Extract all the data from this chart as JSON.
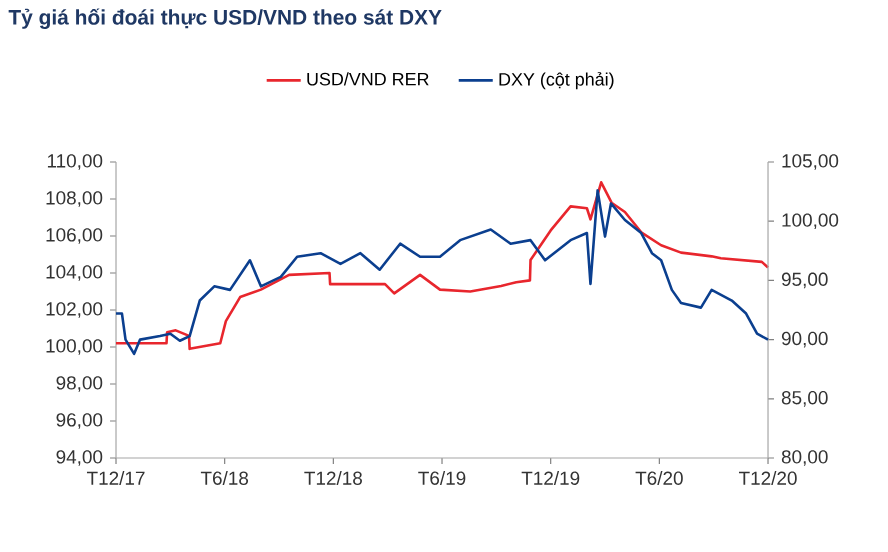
{
  "chart_data": {
    "type": "line",
    "title": "Tỷ giá hối đoái thực USD/VND theo sát DXY",
    "xlim": [
      "2017-12",
      "2020-12"
    ],
    "xticks": [
      {
        "value": "2017-12",
        "label": "T12/17"
      },
      {
        "value": "2018-06",
        "label": "T6/18"
      },
      {
        "value": "2018-12",
        "label": "T12/18"
      },
      {
        "value": "2019-06",
        "label": "T6/19"
      },
      {
        "value": "2019-12",
        "label": "T12/19"
      },
      {
        "value": "2020-06",
        "label": "T6/20"
      },
      {
        "value": "2020-12",
        "label": "T12/20"
      }
    ],
    "ylim": [
      94,
      110
    ],
    "yticks": [
      {
        "value": 94,
        "label": "94,00"
      },
      {
        "value": 96,
        "label": "96,00"
      },
      {
        "value": 98,
        "label": "98,00"
      },
      {
        "value": 100,
        "label": "100,00"
      },
      {
        "value": 102,
        "label": "102,00"
      },
      {
        "value": 104,
        "label": "104,00"
      },
      {
        "value": 106,
        "label": "106,00"
      },
      {
        "value": 108,
        "label": "108,00"
      },
      {
        "value": 110,
        "label": "110,00"
      }
    ],
    "y2lim": [
      80,
      105
    ],
    "y2ticks": [
      {
        "value": 80,
        "label": "80,00"
      },
      {
        "value": 85,
        "label": "85,00"
      },
      {
        "value": 90,
        "label": "90,00"
      },
      {
        "value": 95,
        "label": "95,00"
      },
      {
        "value": 100,
        "label": "100,00"
      },
      {
        "value": 105,
        "label": "105,00"
      }
    ],
    "grid": false,
    "legend": "top",
    "marker": "none",
    "line_style": "solid",
    "series": [
      {
        "name": "USD/VND RER",
        "color": "#e8262d",
        "x": [
          "2017-12-01",
          "2018-02-25",
          "2018-02-26",
          "2018-03-10",
          "2018-04-02",
          "2018-04-03",
          "2018-05-24",
          "2018-06-03",
          "2018-06-27",
          "2018-08-01",
          "2018-09-18",
          "2018-11-25",
          "2018-11-26",
          "2019-02-27",
          "2019-03-12",
          "2019-04-25",
          "2019-05-28",
          "2019-07-18",
          "2019-09-09",
          "2019-10-04",
          "2019-10-27",
          "2019-10-28",
          "2019-12-01",
          "2020-01-04",
          "2020-02-01",
          "2020-02-07",
          "2020-02-25",
          "2020-03-12",
          "2020-04-04",
          "2020-05-01",
          "2020-06-04",
          "2020-07-07",
          "2020-08-28",
          "2020-09-13",
          "2020-11-21",
          "2020-12-01"
        ],
        "values": [
          100.2,
          100.2,
          100.8,
          100.9,
          100.6,
          99.9,
          100.2,
          101.4,
          102.7,
          103.1,
          103.9,
          104.0,
          103.4,
          103.4,
          102.9,
          103.9,
          103.1,
          103.0,
          103.3,
          103.5,
          103.6,
          104.7,
          106.3,
          107.6,
          107.5,
          106.9,
          108.9,
          107.8,
          107.3,
          106.2,
          105.5,
          105.1,
          104.9,
          104.8,
          104.6,
          104.3
        ]
      },
      {
        "name": "DXY (cột phải)",
        "color": "#0b3f8f",
        "axis": "y2",
        "x": [
          "2017-12-01",
          "2017-12-11",
          "2017-12-17",
          "2018-01-01",
          "2018-01-11",
          "2018-02-14",
          "2018-03-01",
          "2018-03-17",
          "2018-04-03",
          "2018-04-20",
          "2018-05-14",
          "2018-06-10",
          "2018-07-13",
          "2018-08-01",
          "2018-09-04",
          "2018-10-01",
          "2018-11-10",
          "2018-12-13",
          "2019-01-16",
          "2019-02-18",
          "2019-03-22",
          "2019-04-25",
          "2019-05-28",
          "2019-07-01",
          "2019-08-22",
          "2019-09-25",
          "2019-10-28",
          "2019-11-22",
          "2020-01-04",
          "2020-02-01",
          "2020-02-07",
          "2020-02-19",
          "2020-03-01",
          "2020-03-11",
          "2020-04-04",
          "2020-05-01",
          "2020-05-19",
          "2020-06-04",
          "2020-06-22",
          "2020-07-07",
          "2020-08-10",
          "2020-08-28",
          "2020-10-01",
          "2020-10-25",
          "2020-11-13",
          "2020-12-01"
        ],
        "values": [
          92.2,
          92.2,
          90.0,
          88.8,
          90.0,
          90.3,
          90.5,
          89.9,
          90.3,
          93.3,
          94.5,
          94.2,
          96.7,
          94.5,
          95.3,
          97.0,
          97.3,
          96.4,
          97.3,
          95.9,
          98.1,
          97.0,
          97.0,
          98.4,
          99.3,
          98.1,
          98.4,
          96.7,
          98.4,
          99.0,
          94.7,
          102.6,
          98.7,
          101.5,
          100.1,
          99.0,
          97.3,
          96.7,
          94.2,
          93.1,
          92.7,
          94.2,
          93.3,
          92.2,
          90.5,
          90.0
        ]
      }
    ]
  }
}
